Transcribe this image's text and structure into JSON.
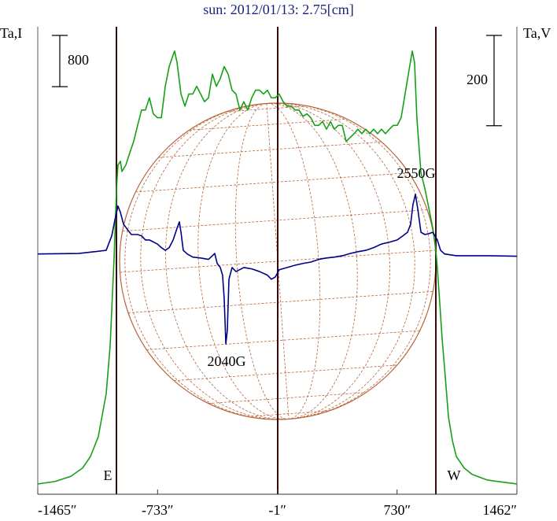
{
  "chart_data": {
    "type": "line",
    "title": "sun: 2012/01/13: 2.75[cm]",
    "y_label": "Ta,I",
    "y2_label": "Ta,V",
    "xlim": [
      -1465,
      1462
    ],
    "xticks": [
      {
        "value": -1465,
        "label": "-1465″"
      },
      {
        "value": -733,
        "label": "-733″"
      },
      {
        "value": -1,
        "label": "-1″"
      },
      {
        "value": 730,
        "label": "730″"
      },
      {
        "value": 1462,
        "label": "1462″"
      }
    ],
    "ylim": [
      0,
      7300
    ],
    "y2lim": [
      -530,
      505
    ],
    "scale_bars": [
      {
        "value": 800,
        "axis": "y"
      },
      {
        "value": 200,
        "axis": "y2"
      }
    ],
    "limb_labels": [
      "E",
      "W"
    ],
    "annotations": [
      "2550G",
      "2040G"
    ],
    "series": [
      {
        "color": "#16a016",
        "x": [
          -1465,
          -1359,
          -1263,
          -1191,
          -1143,
          -1095,
          -1047,
          -1023,
          -999,
          -984,
          -975,
          -960,
          -951,
          -927,
          -903,
          -879,
          -855,
          -831,
          -807,
          -783,
          -759,
          -734,
          -710,
          -686,
          -662,
          -638,
          -629,
          -614,
          -590,
          -566,
          -542,
          -518,
          -494,
          -470,
          -446,
          -422,
          -398,
          -374,
          -350,
          -326,
          -302,
          -278,
          -254,
          -230,
          -206,
          -182,
          -158,
          -134,
          -110,
          -86,
          -62,
          -38,
          -14,
          10,
          34,
          59,
          83,
          107,
          131,
          155,
          179,
          203,
          227,
          251,
          275,
          299,
          323,
          347,
          371,
          395,
          419,
          443,
          467,
          491,
          515,
          539,
          563,
          587,
          611,
          635,
          659,
          683,
          707,
          731,
          755,
          779,
          803,
          823,
          837,
          851,
          876,
          900,
          924,
          948,
          962,
          972,
          986,
          1005,
          1025,
          1044,
          1068,
          1092,
          1140,
          1188,
          1284,
          1462
        ],
        "values": [
          160,
          200,
          280,
          410,
          590,
          900,
          1570,
          2310,
          3670,
          4770,
          5140,
          5200,
          5040,
          5140,
          5330,
          5510,
          5760,
          6000,
          6000,
          6190,
          5940,
          5880,
          5880,
          6370,
          6680,
          6860,
          6920,
          6740,
          6250,
          6060,
          6250,
          6250,
          6370,
          6250,
          6130,
          6190,
          6560,
          6370,
          6490,
          6680,
          6560,
          6310,
          6250,
          6000,
          6130,
          6000,
          6190,
          6310,
          6310,
          6250,
          6310,
          6190,
          6190,
          6250,
          6130,
          6060,
          6060,
          6000,
          6000,
          5900,
          5940,
          5880,
          5760,
          5760,
          5820,
          5700,
          5820,
          5700,
          5760,
          5760,
          5510,
          5570,
          5630,
          5700,
          5630,
          5700,
          5630,
          5700,
          5630,
          5700,
          5630,
          5700,
          5760,
          5760,
          5880,
          6250,
          6620,
          6920,
          6740,
          5880,
          5020,
          4770,
          4470,
          4160,
          3910,
          3670,
          3170,
          2440,
          1820,
          1210,
          840,
          590,
          410,
          310,
          220,
          160
        ]
      },
      {
        "color": "#000088",
        "axis": "y2",
        "x": [
          -1465,
          -1215,
          -1119,
          -1047,
          -1013,
          -994,
          -975,
          -960,
          -941,
          -917,
          -893,
          -855,
          -831,
          -807,
          -783,
          -734,
          -710,
          -686,
          -662,
          -638,
          -614,
          -600,
          -590,
          -576,
          -552,
          -518,
          -470,
          -422,
          -398,
          -384,
          -369,
          -350,
          -336,
          -326,
          -316,
          -307,
          -297,
          -278,
          -254,
          -206,
          -158,
          -110,
          -62,
          -38,
          -14,
          10,
          59,
          107,
          155,
          203,
          251,
          299,
          347,
          395,
          443,
          491,
          539,
          587,
          635,
          683,
          731,
          765,
          794,
          813,
          827,
          842,
          856,
          876,
          900,
          924,
          948,
          962,
          976,
          996,
          1020,
          1092,
          1284,
          1462
        ],
        "values": [
          2,
          3,
          7,
          10,
          42,
          77,
          108,
          94,
          68,
          56,
          45,
          45,
          42,
          33,
          33,
          24,
          16,
          10,
          16,
          33,
          59,
          73,
          50,
          10,
          2,
          -5,
          -7,
          -10,
          -2,
          3,
          -19,
          -28,
          -45,
          -97,
          -197,
          -167,
          -54,
          -28,
          -37,
          -28,
          -31,
          -37,
          -45,
          -54,
          -49,
          -33,
          -28,
          -23,
          -19,
          -16,
          -10,
          -7,
          -5,
          -2,
          3,
          7,
          10,
          16,
          24,
          28,
          33,
          42,
          50,
          68,
          111,
          134,
          103,
          50,
          45,
          47,
          50,
          42,
          33,
          10,
          2,
          -2,
          -2,
          -3
        ]
      }
    ]
  }
}
